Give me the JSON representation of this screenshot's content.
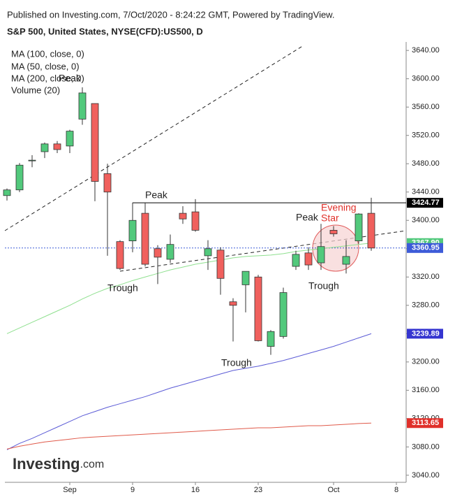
{
  "header": "Published on Investing.com, 7/Oct/2020 - 8:24:22 GMT, Powered by TradingView.",
  "logo": "Investing",
  "logo_suffix": ".com",
  "chart_data": {
    "type": "candlestick",
    "title": "S&P 500, United States, NYSE(CFD):US500, D",
    "categories": [
      null,
      null,
      null,
      null,
      null,
      "Sep",
      null,
      null,
      null,
      null,
      "9",
      null,
      null,
      null,
      null,
      "16",
      null,
      null,
      null,
      null,
      "23",
      null,
      null,
      null,
      null,
      null,
      "Oct",
      null,
      null,
      null,
      null,
      "8"
    ],
    "open": [
      3435,
      3443,
      3484,
      3497,
      3508,
      3505,
      3543,
      3565,
      3466,
      3370,
      3371,
      3410,
      3360,
      3345,
      3410,
      3412,
      3350,
      3358,
      3285,
      3309,
      3320,
      3222,
      3236,
      3335,
      3354,
      3340,
      3386,
      3338,
      3371,
      3410,
      null,
      null
    ],
    "high": [
      3445,
      3481,
      3492,
      3510,
      3512,
      3528,
      3588,
      3565,
      3480,
      3372,
      3425,
      3425,
      3365,
      3380,
      3420,
      3430,
      3372,
      3362,
      3290,
      3328,
      3323,
      3245,
      3305,
      3357,
      3362,
      3395,
      3392,
      3372,
      3410,
      3432,
      null,
      null
    ],
    "low": [
      3428,
      3440,
      3475,
      3488,
      3495,
      3495,
      3535,
      3427,
      3350,
      3330,
      3355,
      3335,
      3310,
      3340,
      3395,
      3384,
      3330,
      3295,
      3229,
      3270,
      3229,
      3210,
      3233,
      3330,
      3330,
      3330,
      3377,
      3325,
      3367,
      3357,
      null,
      null
    ],
    "close": [
      3443,
      3478,
      3485,
      3508,
      3500,
      3526,
      3580,
      3455,
      3440,
      3332,
      3400,
      3338,
      3348,
      3366,
      3402,
      3386,
      3360,
      3318,
      3280,
      3328,
      3230,
      3243,
      3298,
      3352,
      3337,
      3363,
      3381,
      3349,
      3409,
      3360.95,
      null,
      null
    ],
    "up_color": "#52c97c",
    "down_color": "#f0605d",
    "series": [
      {
        "name": "MA (100, close, 0)",
        "color": "#5b5bd6",
        "values": [
          3076,
          3085,
          3092,
          3100,
          3108,
          3116,
          3124,
          3130,
          3136,
          3141,
          3146,
          3151,
          3157,
          3163,
          3168,
          3173,
          3178,
          3183,
          3188,
          3191,
          3194,
          3198,
          3202,
          3207,
          3212,
          3217,
          3222,
          3228,
          3234,
          3239.89,
          null,
          null
        ]
      },
      {
        "name": "MA (50, close, 0)",
        "color": "#8fe08f",
        "values": [
          3240,
          3248,
          3256,
          3264,
          3272,
          3280,
          3289,
          3297,
          3304,
          3309,
          3315,
          3320,
          3325,
          3330,
          3334,
          3338,
          3341,
          3344,
          3347,
          3349,
          3350,
          3351,
          3353,
          3356,
          3358,
          3360,
          3362,
          3364,
          3366,
          3367.9,
          null,
          null
        ]
      },
      {
        "name": "MA (200, close, 0)",
        "color": "#e05a4a",
        "values": [
          3077,
          3081,
          3084,
          3087,
          3089,
          3091,
          3093,
          3094,
          3095,
          3096,
          3097,
          3098,
          3099,
          3100,
          3101,
          3102,
          3103,
          3104,
          3105,
          3106,
          3107,
          3107,
          3108,
          3109,
          3110,
          3110,
          3111,
          3112,
          3113,
          3113.65,
          null,
          null
        ]
      }
    ],
    "volume_label": "Volume (20)",
    "price_labels": [
      {
        "value": 3424.77,
        "label": "3424.77",
        "color": "#000000"
      },
      {
        "value": 3367.9,
        "label": "3367.90",
        "color": "#52c97c"
      },
      {
        "value": 3360.95,
        "label": "3360.95",
        "color": "#3d5bd8"
      },
      {
        "value": 3239.89,
        "label": "3239.89",
        "color": "#3535d0"
      },
      {
        "value": 3113.65,
        "label": "3113.65",
        "color": "#e0302a"
      }
    ],
    "annotations": [
      "Peak",
      "Peak",
      "Trough",
      "Peak",
      "Evening",
      "Star",
      "Trough",
      "Trough"
    ],
    "ylim": [
      3030,
      3652
    ],
    "yticks": [
      {
        "value": 3040,
        "label": "3040.00"
      },
      {
        "value": 3080,
        "label": "3080.00"
      },
      {
        "value": 3120,
        "label": "3120.00"
      },
      {
        "value": 3160,
        "label": "3160.00"
      },
      {
        "value": 3200,
        "label": "3200.00"
      },
      {
        "value": 3240,
        "label": "3240.00"
      },
      {
        "value": 3280,
        "label": "3280.00"
      },
      {
        "value": 3320,
        "label": "3320.00"
      },
      {
        "value": 3360,
        "label": "3360.00"
      },
      {
        "value": 3400,
        "label": "3400.00"
      },
      {
        "value": 3440,
        "label": "3440.00"
      },
      {
        "value": 3480,
        "label": "3480.00"
      },
      {
        "value": 3520,
        "label": "3520.00"
      },
      {
        "value": 3560,
        "label": "3560.00"
      },
      {
        "value": 3600,
        "label": "3600.00"
      },
      {
        "value": 3640,
        "label": "3640.00"
      }
    ]
  }
}
